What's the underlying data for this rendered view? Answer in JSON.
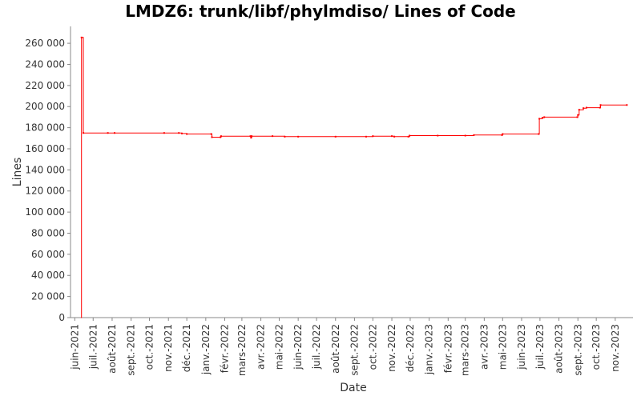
{
  "chart_data": {
    "type": "line",
    "title": "LMDZ6: trunk/libf/phylmdiso/ Lines of Code",
    "xlabel": "Date",
    "ylabel": "Lines",
    "ylim": [
      0,
      276000
    ],
    "xlim": [
      "2021-05-25",
      "2023-11-30"
    ],
    "grid": false,
    "step": true,
    "series_color": "#ff0000",
    "y_ticks": [
      0,
      20000,
      40000,
      60000,
      80000,
      100000,
      120000,
      140000,
      160000,
      180000,
      200000,
      220000,
      240000,
      260000
    ],
    "y_tick_labels": [
      "0",
      "20 000",
      "40 000",
      "60 000",
      "80 000",
      "100 000",
      "120 000",
      "140 000",
      "160 000",
      "180 000",
      "200 000",
      "220 000",
      "240 000",
      "260 000"
    ],
    "x_ticks": [
      {
        "date": "2021-06-01",
        "label": "juin-2021"
      },
      {
        "date": "2021-07-01",
        "label": "juil.-2021"
      },
      {
        "date": "2021-08-01",
        "label": "août-2021"
      },
      {
        "date": "2021-09-01",
        "label": "sept.-2021"
      },
      {
        "date": "2021-10-01",
        "label": "oct.-2021"
      },
      {
        "date": "2021-11-01",
        "label": "nov.-2021"
      },
      {
        "date": "2021-12-01",
        "label": "déc.-2021"
      },
      {
        "date": "2022-01-01",
        "label": "janv.-2022"
      },
      {
        "date": "2022-02-01",
        "label": "févr.-2022"
      },
      {
        "date": "2022-03-01",
        "label": "mars-2022"
      },
      {
        "date": "2022-04-01",
        "label": "avr.-2022"
      },
      {
        "date": "2022-05-01",
        "label": "mai-2022"
      },
      {
        "date": "2022-06-01",
        "label": "juin-2022"
      },
      {
        "date": "2022-07-01",
        "label": "juil.-2022"
      },
      {
        "date": "2022-08-01",
        "label": "août-2022"
      },
      {
        "date": "2022-09-01",
        "label": "sept.-2022"
      },
      {
        "date": "2022-10-01",
        "label": "oct.-2022"
      },
      {
        "date": "2022-11-01",
        "label": "nov.-2022"
      },
      {
        "date": "2022-12-01",
        "label": "déc.-2022"
      },
      {
        "date": "2023-01-01",
        "label": "janv.-2023"
      },
      {
        "date": "2023-02-01",
        "label": "févr.-2023"
      },
      {
        "date": "2023-03-01",
        "label": "mars-2023"
      },
      {
        "date": "2023-04-01",
        "label": "avr.-2023"
      },
      {
        "date": "2023-05-01",
        "label": "mai-2023"
      },
      {
        "date": "2023-06-01",
        "label": "juin-2023"
      },
      {
        "date": "2023-07-01",
        "label": "juil.-2023"
      },
      {
        "date": "2023-08-01",
        "label": "août-2023"
      },
      {
        "date": "2023-09-01",
        "label": "sept.-2023"
      },
      {
        "date": "2023-10-01",
        "label": "oct.-2023"
      },
      {
        "date": "2023-11-01",
        "label": "nov.-2023"
      }
    ],
    "series": [
      {
        "points": [
          {
            "x": "2021-06-11",
            "y": 0
          },
          {
            "x": "2021-06-12",
            "y": 265500
          },
          {
            "x": "2021-06-15",
            "y": 175000
          },
          {
            "x": "2021-07-25",
            "y": 175000
          },
          {
            "x": "2021-08-05",
            "y": 175000
          },
          {
            "x": "2021-10-25",
            "y": 175000
          },
          {
            "x": "2021-11-18",
            "y": 175000
          },
          {
            "x": "2021-11-23",
            "y": 174500
          },
          {
            "x": "2021-12-01",
            "y": 174000
          },
          {
            "x": "2022-01-10",
            "y": 174000
          },
          {
            "x": "2022-01-11",
            "y": 171000
          },
          {
            "x": "2022-01-25",
            "y": 171000
          },
          {
            "x": "2022-01-26",
            "y": 172000
          },
          {
            "x": "2022-03-15",
            "y": 172000
          },
          {
            "x": "2022-03-16",
            "y": 170500
          },
          {
            "x": "2022-03-17",
            "y": 172000
          },
          {
            "x": "2022-04-20",
            "y": 172000
          },
          {
            "x": "2022-05-10",
            "y": 171500
          },
          {
            "x": "2022-06-01",
            "y": 171500
          },
          {
            "x": "2022-08-01",
            "y": 171500
          },
          {
            "x": "2022-09-20",
            "y": 171500
          },
          {
            "x": "2022-10-01",
            "y": 172000
          },
          {
            "x": "2022-11-01",
            "y": 172000
          },
          {
            "x": "2022-11-05",
            "y": 171500
          },
          {
            "x": "2022-11-28",
            "y": 171500
          },
          {
            "x": "2022-11-30",
            "y": 172500
          },
          {
            "x": "2023-01-15",
            "y": 172500
          },
          {
            "x": "2023-03-01",
            "y": 172500
          },
          {
            "x": "2023-03-15",
            "y": 173000
          },
          {
            "x": "2023-04-30",
            "y": 173000
          },
          {
            "x": "2023-05-01",
            "y": 174000
          },
          {
            "x": "2023-06-29",
            "y": 174000
          },
          {
            "x": "2023-06-30",
            "y": 188500
          },
          {
            "x": "2023-07-05",
            "y": 189500
          },
          {
            "x": "2023-07-08",
            "y": 190000
          },
          {
            "x": "2023-08-31",
            "y": 190000
          },
          {
            "x": "2023-09-01",
            "y": 192000
          },
          {
            "x": "2023-09-03",
            "y": 197000
          },
          {
            "x": "2023-09-10",
            "y": 198500
          },
          {
            "x": "2023-09-15",
            "y": 199000
          },
          {
            "x": "2023-10-07",
            "y": 199000
          },
          {
            "x": "2023-10-08",
            "y": 201500
          },
          {
            "x": "2023-11-20",
            "y": 201500
          }
        ]
      }
    ]
  }
}
